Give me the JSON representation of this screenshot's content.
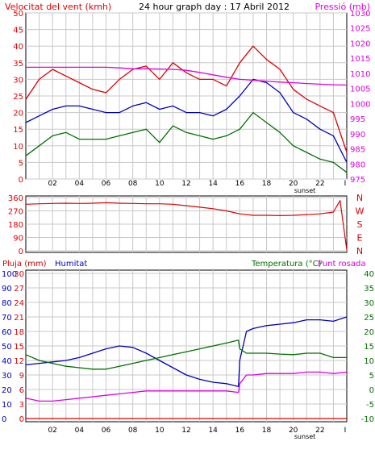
{
  "colors": {
    "red": "#e00000",
    "blue": "#0000c0",
    "green": "#007000",
    "magenta": "#e000e0",
    "grid": "#c8c8c8",
    "frame": "#000000"
  },
  "chart_data": [
    {
      "type": "line",
      "title": "24 hour graph day : 17 Abril 2012",
      "left_axis_label": "Velocitat del vent (kmh)",
      "right_axis_label": "Pressió (mb)",
      "x_ticks": [
        "02",
        "04",
        "06",
        "08",
        "10",
        "12",
        "14",
        "16",
        "18",
        "20",
        "22",
        "I"
      ],
      "x_marker": "sunset",
      "ylim_left": [
        0,
        50
      ],
      "ylim_right": [
        975,
        1030
      ],
      "y_ticks_left": [
        "0",
        "5",
        "10",
        "15",
        "20",
        "25",
        "30",
        "35",
        "40",
        "45",
        "50"
      ],
      "y_ticks_right": [
        "975",
        "980",
        "985",
        "990",
        "995",
        "1000",
        "1005",
        "1010",
        "1015",
        "1020",
        "1025",
        "1030"
      ],
      "grid": true,
      "x": [
        0,
        1,
        2,
        3,
        4,
        5,
        6,
        7,
        8,
        9,
        10,
        11,
        12,
        13,
        14,
        15,
        16,
        17,
        18,
        19,
        20,
        21,
        22,
        23,
        24
      ],
      "series": [
        {
          "axis": "left",
          "color": "#e00000",
          "values": [
            24,
            30,
            33,
            31,
            29,
            27,
            26,
            30,
            33,
            34,
            30,
            35,
            32,
            30,
            30,
            28,
            35,
            40,
            36,
            33,
            27,
            24,
            22,
            20,
            8
          ]
        },
        {
          "axis": "left",
          "color": "#0000c0",
          "values": [
            17,
            19,
            21,
            22,
            22,
            21,
            20,
            20,
            22,
            23,
            21,
            22,
            20,
            20,
            19,
            21,
            25,
            30,
            29,
            26,
            20,
            18,
            15,
            13,
            5
          ]
        },
        {
          "axis": "left",
          "color": "#007000",
          "values": [
            7,
            10,
            13,
            14,
            12,
            12,
            12,
            13,
            14,
            15,
            11,
            16,
            14,
            13,
            12,
            13,
            15,
            20,
            17,
            14,
            10,
            8,
            6,
            5,
            2
          ]
        },
        {
          "axis": "right",
          "color": "#e000e0",
          "values": [
            1012,
            1012,
            1012,
            1012,
            1012,
            1012,
            1012,
            1011.8,
            1011.5,
            1011.5,
            1011.4,
            1011.3,
            1011,
            1010.3,
            1009.5,
            1008.7,
            1008,
            1007.7,
            1007.4,
            1007.1,
            1006.9,
            1006.6,
            1006.4,
            1006.2,
            1006.1
          ]
        }
      ]
    },
    {
      "type": "line",
      "title": "",
      "right_axis_labels": [
        "N",
        "W",
        "S",
        "E",
        "N"
      ],
      "y_ticks_left": [
        "0",
        "90",
        "180",
        "270",
        "360"
      ],
      "ylim_left": [
        0,
        360
      ],
      "grid": true,
      "x": [
        0,
        1,
        2,
        3,
        4,
        5,
        6,
        7,
        8,
        9,
        10,
        11,
        12,
        13,
        14,
        15,
        16,
        17,
        18,
        19,
        20,
        21,
        22,
        23,
        23.5,
        24
      ],
      "series": [
        {
          "axis": "left",
          "color": "#e00000",
          "values": [
            315,
            318,
            320,
            322,
            320,
            322,
            325,
            322,
            320,
            318,
            318,
            315,
            305,
            295,
            285,
            270,
            250,
            240,
            240,
            238,
            240,
            245,
            250,
            262,
            340,
            5
          ]
        }
      ]
    },
    {
      "type": "line",
      "title": "",
      "left_axis_labels": [
        "Pluja (mm)",
        "Humitat"
      ],
      "right_axis_labels": [
        "Temperatura (°C)",
        "Punt rosada"
      ],
      "x_ticks": [
        "02",
        "04",
        "06",
        "08",
        "10",
        "12",
        "14",
        "16",
        "18",
        "20",
        "22",
        "I"
      ],
      "x_marker": "sunset",
      "ylim_humidity": [
        0,
        100
      ],
      "ylim_rain": [
        0,
        30
      ],
      "ylim_temperature": [
        -10,
        40
      ],
      "y_ticks_humidity": [
        "0",
        "10",
        "20",
        "30",
        "40",
        "50",
        "60",
        "70",
        "80",
        "90",
        "100"
      ],
      "y_ticks_rain": [
        "0",
        "3",
        "6",
        "9",
        "12",
        "15",
        "18",
        "21",
        "24",
        "27",
        "30"
      ],
      "y_ticks_temperature": [
        "-10",
        "-5",
        "0",
        "5",
        "10",
        "15",
        "20",
        "25",
        "30",
        "35",
        "40"
      ],
      "grid": true,
      "x": [
        0,
        1,
        2,
        3,
        4,
        5,
        6,
        7,
        8,
        9,
        10,
        11,
        12,
        13,
        14,
        15,
        15.9,
        16,
        16.5,
        17,
        18,
        19,
        20,
        21,
        22,
        23,
        24
      ],
      "series": [
        {
          "axis": "humidity",
          "color": "#0000c0",
          "values": [
            37,
            38,
            39,
            40,
            42,
            45,
            48,
            50,
            49,
            45,
            40,
            35,
            30,
            27,
            25,
            24,
            22,
            40,
            60,
            62,
            64,
            65,
            66,
            68,
            68,
            67,
            70
          ]
        },
        {
          "axis": "temperature",
          "color": "#007000",
          "values": [
            12,
            10,
            9,
            8,
            7.5,
            7,
            7,
            8,
            9,
            10,
            11,
            12,
            13,
            14,
            15,
            16,
            17,
            14,
            12.5,
            12.5,
            12.5,
            12.2,
            12,
            12.5,
            12.5,
            11,
            11
          ]
        },
        {
          "axis": "temperature",
          "color": "#e000e0",
          "values": [
            -3,
            -4,
            -4,
            -3.5,
            -3,
            -2.5,
            -2,
            -1.5,
            -1,
            -0.5,
            -0.5,
            -0.5,
            -0.5,
            -0.5,
            -0.5,
            -0.5,
            -1,
            2,
            5,
            5,
            5.5,
            5.5,
            5.5,
            6,
            6,
            5.5,
            6
          ]
        },
        {
          "axis": "rain",
          "color": "#e00000",
          "values": [
            0,
            0,
            0,
            0,
            0,
            0,
            0,
            0,
            0,
            0,
            0,
            0,
            0,
            0,
            0,
            0,
            0,
            0,
            0,
            0,
            0,
            0,
            0,
            0,
            0,
            0,
            0
          ]
        }
      ]
    }
  ]
}
